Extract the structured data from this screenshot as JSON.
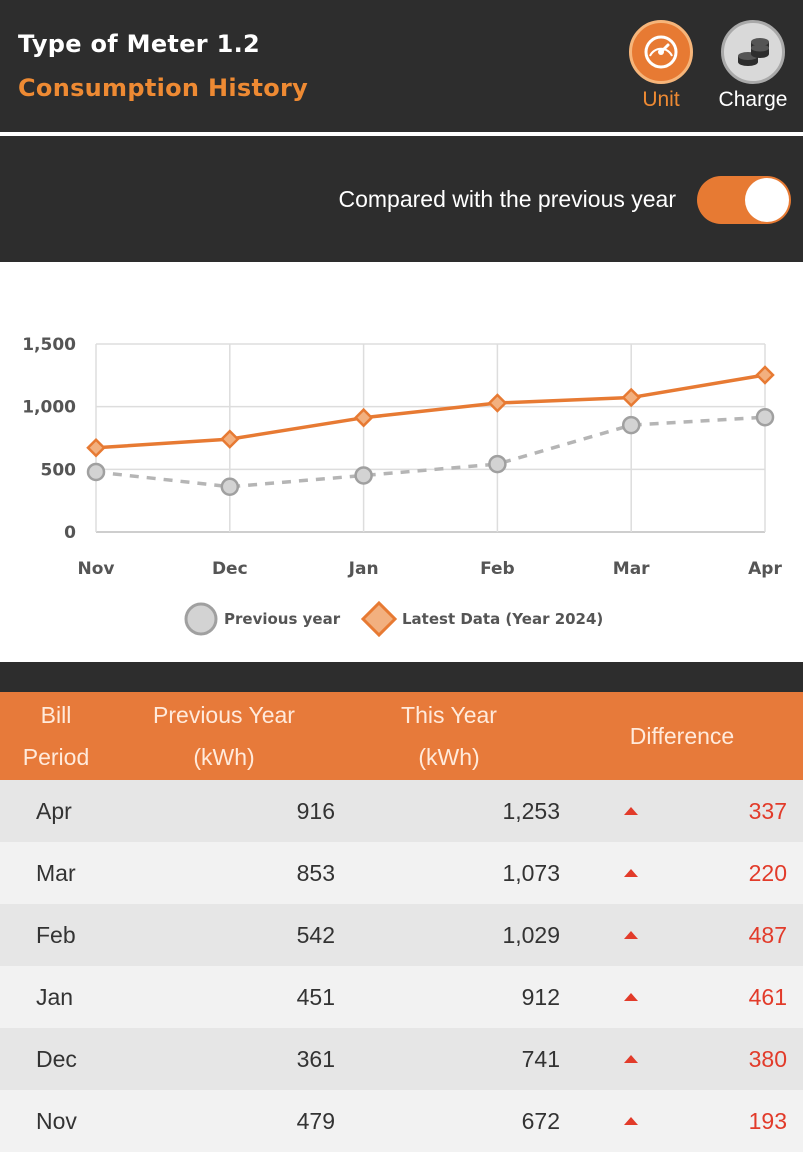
{
  "header": {
    "meter_title": "Type of Meter 1.2",
    "page_title": "Consumption History",
    "unit_button": {
      "label": "Unit",
      "icon": "speedometer-icon",
      "active": true
    },
    "charge_button": {
      "label": "Charge",
      "icon": "coins-icon",
      "active": false
    }
  },
  "compare": {
    "label": "Compared with the previous year",
    "enabled": true
  },
  "colors": {
    "accent": "#e77a33",
    "previous_series": "#b5b5b5",
    "increase": "#e23b2a"
  },
  "chart_data": {
    "type": "line",
    "categories": [
      "Nov",
      "Dec",
      "Jan",
      "Feb",
      "Mar",
      "Apr"
    ],
    "y_ticks": [
      "0",
      "500",
      "1,000",
      "1,500"
    ],
    "ylim": [
      0,
      1500
    ],
    "grid": true,
    "legend_position": "bottom",
    "series": [
      {
        "name": "Previous year",
        "values": [
          479,
          361,
          451,
          542,
          853,
          916
        ],
        "style": "dashed",
        "marker": "circle"
      },
      {
        "name": "Latest Data (Year 2024)",
        "values": [
          672,
          741,
          912,
          1029,
          1073,
          1253
        ],
        "style": "solid",
        "marker": "diamond"
      }
    ]
  },
  "table": {
    "headers": {
      "bill_period": [
        "Bill",
        "Period"
      ],
      "previous_year": [
        "Previous Year",
        "(kWh)"
      ],
      "this_year": [
        "This Year",
        "(kWh)"
      ],
      "difference": "Difference"
    },
    "rows": [
      {
        "month": "Apr",
        "previous": "916",
        "current": "1,253",
        "difference": "337",
        "trend": "up"
      },
      {
        "month": "Mar",
        "previous": "853",
        "current": "1,073",
        "difference": "220",
        "trend": "up"
      },
      {
        "month": "Feb",
        "previous": "542",
        "current": "1,029",
        "difference": "487",
        "trend": "up"
      },
      {
        "month": "Jan",
        "previous": "451",
        "current": "912",
        "difference": "461",
        "trend": "up"
      },
      {
        "month": "Dec",
        "previous": "361",
        "current": "741",
        "difference": "380",
        "trend": "up"
      },
      {
        "month": "Nov",
        "previous": "479",
        "current": "672",
        "difference": "193",
        "trend": "up"
      }
    ]
  }
}
